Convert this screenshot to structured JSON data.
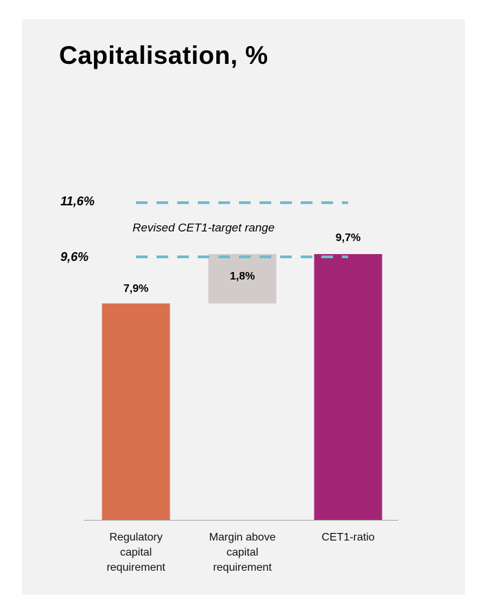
{
  "chart_data": {
    "type": "bar",
    "title": "Capitalisation, %",
    "categories": [
      "Regulatory capital requirement",
      "Margin above capital requirement",
      "CET1-ratio"
    ],
    "category_lines": [
      [
        "Regulatory",
        "capital",
        "requirement"
      ],
      [
        "Margin above",
        "capital",
        "requirement"
      ],
      [
        "CET1-ratio"
      ]
    ],
    "bars": [
      {
        "category": "Regulatory capital requirement",
        "base": 0,
        "value": 7.9,
        "label": "7,9%",
        "color": "#d9704e"
      },
      {
        "category": "Margin above capital requirement",
        "base": 7.9,
        "value": 1.8,
        "label": "1,8%",
        "color": "#d1ccc9"
      },
      {
        "category": "CET1-ratio",
        "base": 0,
        "value": 9.7,
        "label": "9,7%",
        "color": "#a22575"
      }
    ],
    "target_range": {
      "low": 9.6,
      "high": 11.6,
      "low_label": "9,6%",
      "high_label": "11,6%",
      "label": "Revised CET1-target range",
      "color": "#6cbccc"
    },
    "xlabel": "",
    "ylabel": "",
    "ylim": [
      0,
      11.6
    ],
    "grid": false,
    "legend": "none"
  }
}
